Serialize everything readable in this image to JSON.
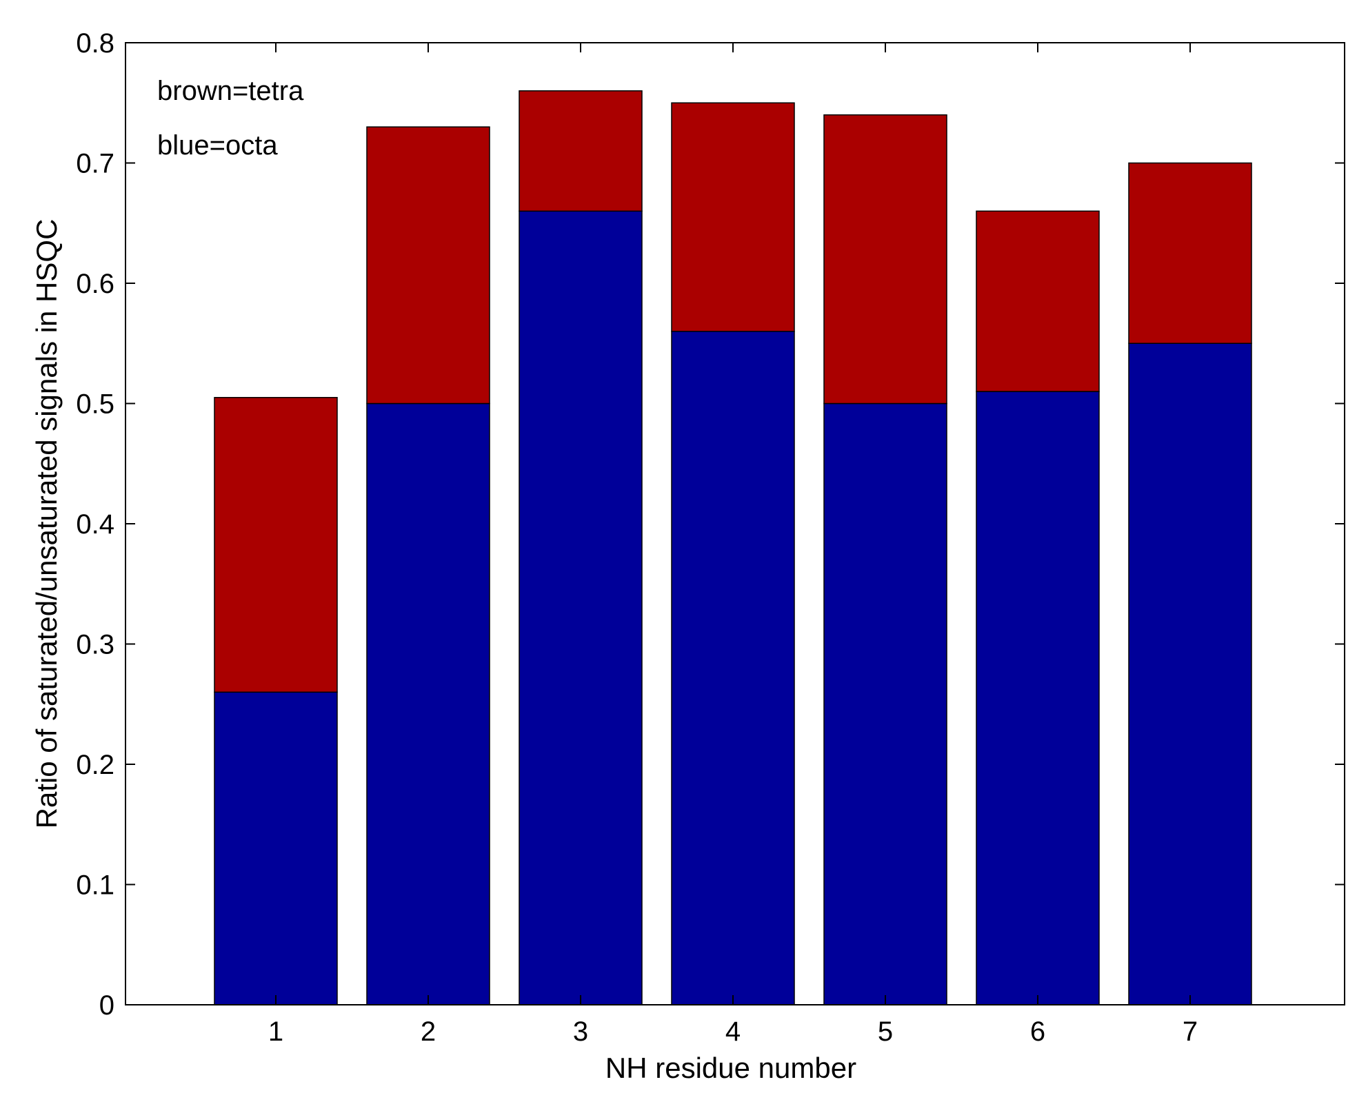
{
  "chart_data": {
    "type": "bar",
    "stacked": true,
    "categories": [
      "1",
      "2",
      "3",
      "4",
      "5",
      "6",
      "7"
    ],
    "series": [
      {
        "values": [
          0.26,
          0.5,
          0.66,
          0.56,
          0.5,
          0.51,
          0.55
        ],
        "color": "#000099"
      },
      {
        "values": [
          0.245,
          0.23,
          0.1,
          0.19,
          0.24,
          0.15,
          0.15
        ],
        "color": "#AA0000"
      }
    ],
    "totals": [
      0.505,
      0.73,
      0.76,
      0.75,
      0.74,
      0.66,
      0.7
    ],
    "xlabel": "NH residue number",
    "ylabel": "Ratio of saturated/unsaturated signals in HSQC",
    "ylim": [
      0,
      0.8
    ],
    "yticks": [
      "0",
      "0.1",
      "0.2",
      "0.3",
      "0.4",
      "0.5",
      "0.6",
      "0.7",
      "0.8"
    ],
    "annotations": [
      "brown=tetra",
      "blue=octa"
    ],
    "grid": false
  }
}
